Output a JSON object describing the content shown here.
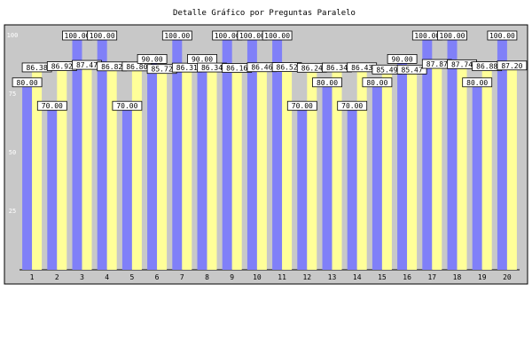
{
  "chart_data": {
    "type": "bar",
    "title": "Detalle Gráfico por Preguntas Paralelo",
    "xlabel": "",
    "ylabel": "",
    "ylim": [
      0,
      100
    ],
    "y_ticks": [
      25,
      50,
      75,
      100
    ],
    "grid": false,
    "legend": "none",
    "categories": [
      "1",
      "2",
      "3",
      "4",
      "5",
      "6",
      "7",
      "8",
      "9",
      "10",
      "11",
      "12",
      "13",
      "14",
      "15",
      "16",
      "17",
      "18",
      "19",
      "20"
    ],
    "series": [
      {
        "color": "#8080f8",
        "values": [
          80.0,
          70.0,
          100.0,
          100.0,
          70.0,
          90.0,
          100.0,
          90.0,
          100.0,
          100.0,
          100.0,
          70.0,
          80.0,
          70.0,
          80.0,
          90.0,
          100.0,
          100.0,
          80.0,
          100.0
        ]
      },
      {
        "color": "#ffff99",
        "values": [
          86.38,
          86.92,
          87.47,
          86.82,
          86.8,
          85.72,
          86.31,
          86.34,
          86.16,
          86.46,
          86.52,
          86.24,
          86.34,
          86.43,
          85.49,
          85.47,
          87.87,
          87.74,
          86.88,
          87.2
        ]
      }
    ],
    "colors": {
      "plot_bg": "#c8c8c8",
      "frame": "#000000",
      "label_bg": "#ffffff"
    }
  }
}
